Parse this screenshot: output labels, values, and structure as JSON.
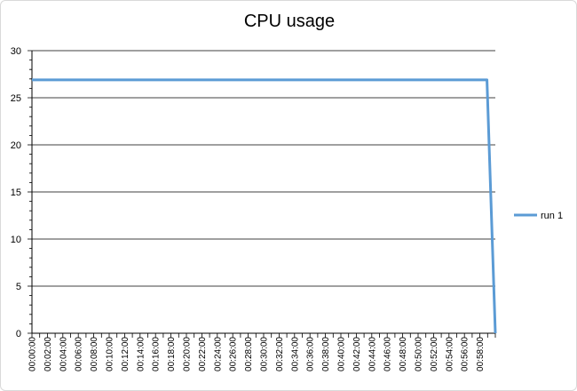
{
  "chart_data": {
    "type": "line",
    "title": "CPU usage",
    "xlabel": "",
    "ylabel": "",
    "ylim": [
      0,
      30
    ],
    "y_ticks": [
      0,
      5,
      10,
      15,
      20,
      25,
      30
    ],
    "x_tick_labels": [
      "00:00:00",
      "00:02:00",
      "00:04:00",
      "00:06:00",
      "00:08:00",
      "00:10:00",
      "00:12:00",
      "00:14:00",
      "00:16:00",
      "00:18:00",
      "00:20:00",
      "00:22:00",
      "00:24:00",
      "00:26:00",
      "00:28:00",
      "00:30:00",
      "00:32:00",
      "00:34:00",
      "00:36:00",
      "00:38:00",
      "00:40:00",
      "00:42:00",
      "00:44:00",
      "00:46:00",
      "00:48:00",
      "00:50:00",
      "00:52:00",
      "00:54:00",
      "00:56:00",
      "00:58:00"
    ],
    "x_range_seconds": [
      0,
      3600
    ],
    "grid": true,
    "legend_position": "right",
    "series": [
      {
        "name": "run 1",
        "color": "#5b9bd5",
        "x_seconds": [
          0,
          3535,
          3600
        ],
        "values": [
          26.9,
          26.9,
          0
        ]
      }
    ]
  }
}
